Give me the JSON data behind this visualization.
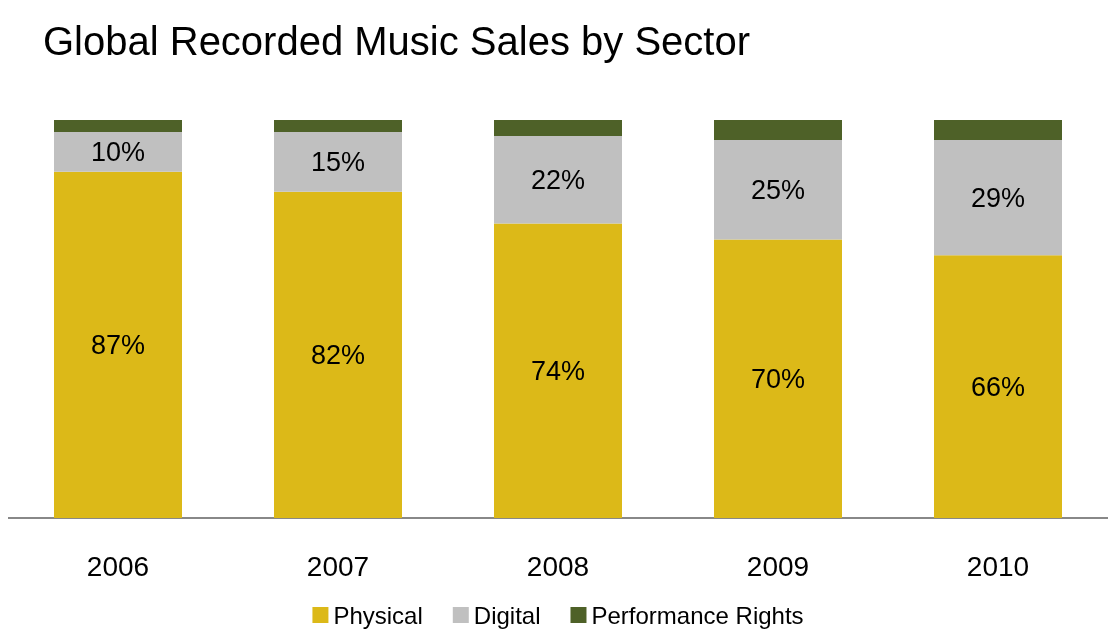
{
  "chart_data": {
    "type": "bar",
    "title": "Global Recorded Music Sales by Sector",
    "categories": [
      "2006",
      "2007",
      "2008",
      "2009",
      "2010"
    ],
    "series": [
      {
        "name": "Physical",
        "color": "#dcb918",
        "values": [
          87,
          82,
          74,
          70,
          66
        ],
        "value_labels": [
          "87%",
          "82%",
          "74%",
          "70%",
          "66%"
        ]
      },
      {
        "name": "Digital",
        "color": "#c0c0c0",
        "values": [
          10,
          15,
          22,
          25,
          29
        ],
        "value_labels": [
          "10%",
          "15%",
          "22%",
          "25%",
          "29%"
        ]
      },
      {
        "name": "Performance Rights",
        "color": "#4e6128",
        "values": [
          3,
          3,
          4,
          5,
          5
        ]
      }
    ],
    "stacked": true,
    "ylim": [
      0,
      100
    ],
    "tick_labels": "x",
    "grid": false,
    "legend": "bottom"
  }
}
